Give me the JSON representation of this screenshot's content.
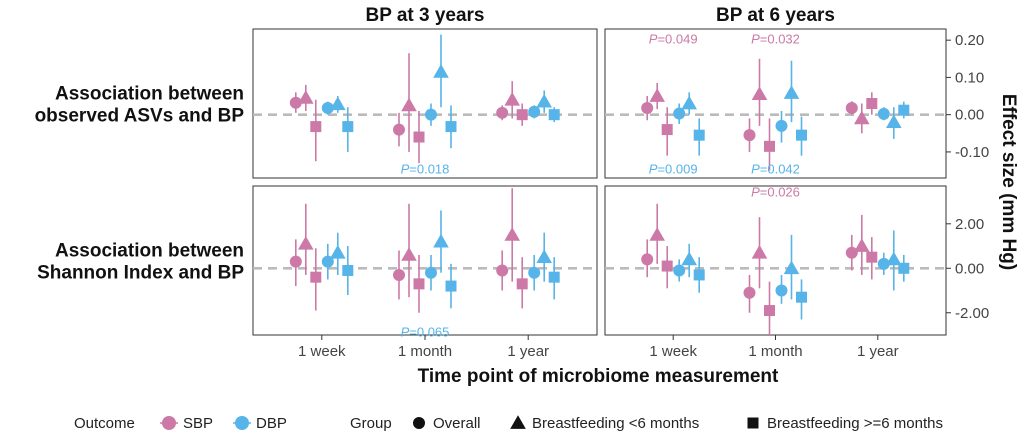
{
  "chart_data": {
    "type": "scatter",
    "subtype": "forest plot (point estimates with 95% CI error bars), faceted",
    "column_titles": [
      "BP at 3 years",
      "BP at 6 years"
    ],
    "row_labels": [
      [
        "Association between",
        "observed ASVs and BP"
      ],
      [
        "Association between",
        "Shannon Index and BP"
      ]
    ],
    "xlabel": "Time point of microbiome measurement",
    "ylabel": "Effect size (mm Hg)",
    "x_categories": [
      "1 week",
      "1 month",
      "1 year"
    ],
    "reference_line": 0,
    "grid": false,
    "legend_position": "bottom",
    "colors": {
      "SBP": "#CC79A7",
      "DBP": "#56B4E9",
      "reference": "#bbbbbb"
    },
    "legend": {
      "outcome_title": "Outcome",
      "outcomes": [
        "SBP",
        "DBP"
      ],
      "group_title": "Group",
      "groups": [
        {
          "name": "Overall",
          "shape": "circle"
        },
        {
          "name": "Breastfeeding <6 months",
          "shape": "triangle"
        },
        {
          "name": "Breastfeeding >=6 months",
          "shape": "square"
        }
      ]
    },
    "y_axes": [
      {
        "row": 0,
        "ylim": [
          -0.17,
          0.23
        ],
        "ticks": [
          0.2,
          0.1,
          0.0,
          -0.1
        ],
        "tick_labels": [
          "0.20",
          "0.10",
          "0.00",
          "-0.10"
        ]
      },
      {
        "row": 1,
        "ylim": [
          -3.0,
          3.7
        ],
        "ticks": [
          2,
          0,
          -2
        ],
        "tick_labels": [
          "2.00",
          "0.00",
          "-2.00"
        ]
      }
    ],
    "panels": [
      {
        "row": 0,
        "col": 0,
        "points": [
          {
            "x": "1 week",
            "outcome": "SBP",
            "group": "Overall",
            "est": 0.032,
            "lo": 0.005,
            "hi": 0.06
          },
          {
            "x": "1 week",
            "outcome": "SBP",
            "group": "Breastfeeding <6 months",
            "est": 0.045,
            "lo": 0.01,
            "hi": 0.08
          },
          {
            "x": "1 week",
            "outcome": "SBP",
            "group": "Breastfeeding >=6 months",
            "est": -0.032,
            "lo": -0.125,
            "hi": 0.04
          },
          {
            "x": "1 week",
            "outcome": "DBP",
            "group": "Overall",
            "est": 0.018,
            "lo": 0.0,
            "hi": 0.035
          },
          {
            "x": "1 week",
            "outcome": "DBP",
            "group": "Breastfeeding <6 months",
            "est": 0.028,
            "lo": 0.005,
            "hi": 0.05
          },
          {
            "x": "1 week",
            "outcome": "DBP",
            "group": "Breastfeeding >=6 months",
            "est": -0.032,
            "lo": -0.1,
            "hi": 0.02
          },
          {
            "x": "1 month",
            "outcome": "SBP",
            "group": "Overall",
            "est": -0.04,
            "lo": -0.085,
            "hi": 0.005
          },
          {
            "x": "1 month",
            "outcome": "SBP",
            "group": "Breastfeeding <6 months",
            "est": 0.025,
            "lo": -0.1,
            "hi": 0.165
          },
          {
            "x": "1 month",
            "outcome": "SBP",
            "group": "Breastfeeding >=6 months",
            "est": -0.06,
            "lo": -0.13,
            "hi": 0.01
          },
          {
            "x": "1 month",
            "outcome": "DBP",
            "group": "Overall",
            "est": 0.0,
            "lo": -0.03,
            "hi": 0.03
          },
          {
            "x": "1 month",
            "outcome": "DBP",
            "group": "Breastfeeding <6 months",
            "est": 0.115,
            "lo": 0.02,
            "hi": 0.215
          },
          {
            "x": "1 month",
            "outcome": "DBP",
            "group": "Breastfeeding >=6 months",
            "est": -0.032,
            "lo": -0.09,
            "hi": 0.025
          },
          {
            "x": "1 year",
            "outcome": "SBP",
            "group": "Overall",
            "est": 0.005,
            "lo": -0.015,
            "hi": 0.025
          },
          {
            "x": "1 year",
            "outcome": "SBP",
            "group": "Breastfeeding <6 months",
            "est": 0.04,
            "lo": -0.01,
            "hi": 0.09
          },
          {
            "x": "1 year",
            "outcome": "SBP",
            "group": "Breastfeeding >=6 months",
            "est": 0.0,
            "lo": -0.03,
            "hi": 0.03
          },
          {
            "x": "1 year",
            "outcome": "DBP",
            "group": "Overall",
            "est": 0.008,
            "lo": -0.01,
            "hi": 0.025
          },
          {
            "x": "1 year",
            "outcome": "DBP",
            "group": "Breastfeeding <6 months",
            "est": 0.035,
            "lo": 0.005,
            "hi": 0.065
          },
          {
            "x": "1 year",
            "outcome": "DBP",
            "group": "Breastfeeding >=6 months",
            "est": 0.0,
            "lo": -0.02,
            "hi": 0.02
          }
        ],
        "annotations": [
          {
            "text": "=0.018",
            "prefix": "P",
            "x": "1 month",
            "y": -0.145,
            "color": "#56B4E9"
          }
        ]
      },
      {
        "row": 0,
        "col": 1,
        "points": [
          {
            "x": "1 week",
            "outcome": "SBP",
            "group": "Overall",
            "est": 0.018,
            "lo": -0.015,
            "hi": 0.05
          },
          {
            "x": "1 week",
            "outcome": "SBP",
            "group": "Breastfeeding <6 months",
            "est": 0.05,
            "lo": 0.015,
            "hi": 0.085
          },
          {
            "x": "1 week",
            "outcome": "SBP",
            "group": "Breastfeeding >=6 months",
            "est": -0.04,
            "lo": -0.11,
            "hi": 0.02
          },
          {
            "x": "1 week",
            "outcome": "DBP",
            "group": "Overall",
            "est": 0.003,
            "lo": -0.025,
            "hi": 0.03
          },
          {
            "x": "1 week",
            "outcome": "DBP",
            "group": "Breastfeeding <6 months",
            "est": 0.03,
            "lo": 0.0,
            "hi": 0.06
          },
          {
            "x": "1 week",
            "outcome": "DBP",
            "group": "Breastfeeding >=6 months",
            "est": -0.055,
            "lo": -0.11,
            "hi": -0.01
          },
          {
            "x": "1 month",
            "outcome": "SBP",
            "group": "Overall",
            "est": -0.055,
            "lo": -0.1,
            "hi": -0.01
          },
          {
            "x": "1 month",
            "outcome": "SBP",
            "group": "Breastfeeding <6 months",
            "est": 0.055,
            "lo": -0.03,
            "hi": 0.15
          },
          {
            "x": "1 month",
            "outcome": "SBP",
            "group": "Breastfeeding >=6 months",
            "est": -0.085,
            "lo": -0.15,
            "hi": -0.01
          },
          {
            "x": "1 month",
            "outcome": "DBP",
            "group": "Overall",
            "est": -0.03,
            "lo": -0.075,
            "hi": 0.01
          },
          {
            "x": "1 month",
            "outcome": "DBP",
            "group": "Breastfeeding <6 months",
            "est": 0.058,
            "lo": -0.02,
            "hi": 0.145
          },
          {
            "x": "1 month",
            "outcome": "DBP",
            "group": "Breastfeeding >=6 months",
            "est": -0.055,
            "lo": -0.11,
            "hi": -0.005
          },
          {
            "x": "1 year",
            "outcome": "SBP",
            "group": "Overall",
            "est": 0.018,
            "lo": 0.0,
            "hi": 0.036
          },
          {
            "x": "1 year",
            "outcome": "SBP",
            "group": "Breastfeeding <6 months",
            "est": -0.01,
            "lo": -0.05,
            "hi": 0.03
          },
          {
            "x": "1 year",
            "outcome": "SBP",
            "group": "Breastfeeding >=6 months",
            "est": 0.03,
            "lo": 0.0,
            "hi": 0.06
          },
          {
            "x": "1 year",
            "outcome": "DBP",
            "group": "Overall",
            "est": 0.002,
            "lo": -0.015,
            "hi": 0.02
          },
          {
            "x": "1 year",
            "outcome": "DBP",
            "group": "Breastfeeding <6 months",
            "est": -0.02,
            "lo": -0.065,
            "hi": 0.02
          },
          {
            "x": "1 year",
            "outcome": "DBP",
            "group": "Breastfeeding >=6 months",
            "est": 0.012,
            "lo": -0.01,
            "hi": 0.035
          }
        ],
        "annotations": [
          {
            "text": "=0.049",
            "prefix": "P",
            "x": "1 week",
            "y": 0.205,
            "color": "#CC79A7"
          },
          {
            "text": "=0.032",
            "prefix": "P",
            "x": "1 month",
            "y": 0.205,
            "color": "#CC79A7"
          },
          {
            "text": "=0.009",
            "prefix": "P",
            "x": "1 week",
            "y": -0.145,
            "color": "#56B4E9"
          },
          {
            "text": "=0.042",
            "prefix": "P",
            "x": "1 month",
            "y": -0.145,
            "color": "#56B4E9"
          }
        ]
      },
      {
        "row": 1,
        "col": 0,
        "points": [
          {
            "x": "1 week",
            "outcome": "SBP",
            "group": "Overall",
            "est": 0.3,
            "lo": -0.8,
            "hi": 1.3
          },
          {
            "x": "1 week",
            "outcome": "SBP",
            "group": "Breastfeeding <6 months",
            "est": 1.1,
            "lo": -0.3,
            "hi": 2.9
          },
          {
            "x": "1 week",
            "outcome": "SBP",
            "group": "Breastfeeding >=6 months",
            "est": -0.4,
            "lo": -1.9,
            "hi": 0.9
          },
          {
            "x": "1 week",
            "outcome": "DBP",
            "group": "Overall",
            "est": 0.3,
            "lo": -0.5,
            "hi": 1.1
          },
          {
            "x": "1 week",
            "outcome": "DBP",
            "group": "Breastfeeding <6 months",
            "est": 0.7,
            "lo": -0.3,
            "hi": 1.6
          },
          {
            "x": "1 week",
            "outcome": "DBP",
            "group": "Breastfeeding >=6 months",
            "est": -0.1,
            "lo": -1.2,
            "hi": 1.0
          },
          {
            "x": "1 month",
            "outcome": "SBP",
            "group": "Overall",
            "est": -0.3,
            "lo": -1.4,
            "hi": 0.8
          },
          {
            "x": "1 month",
            "outcome": "SBP",
            "group": "Breastfeeding <6 months",
            "est": 0.6,
            "lo": -1.3,
            "hi": 2.9
          },
          {
            "x": "1 month",
            "outcome": "SBP",
            "group": "Breastfeeding >=6 months",
            "est": -0.7,
            "lo": -2.0,
            "hi": 0.6
          },
          {
            "x": "1 month",
            "outcome": "DBP",
            "group": "Overall",
            "est": -0.2,
            "lo": -1.0,
            "hi": 0.6
          },
          {
            "x": "1 month",
            "outcome": "DBP",
            "group": "Breastfeeding <6 months",
            "est": 1.2,
            "lo": -0.2,
            "hi": 2.6
          },
          {
            "x": "1 month",
            "outcome": "DBP",
            "group": "Breastfeeding >=6 months",
            "est": -0.8,
            "lo": -1.8,
            "hi": 0.2
          },
          {
            "x": "1 year",
            "outcome": "SBP",
            "group": "Overall",
            "est": -0.1,
            "lo": -1.0,
            "hi": 0.8
          },
          {
            "x": "1 year",
            "outcome": "SBP",
            "group": "Breastfeeding <6 months",
            "est": 1.5,
            "lo": -0.6,
            "hi": 3.6
          },
          {
            "x": "1 year",
            "outcome": "SBP",
            "group": "Breastfeeding >=6 months",
            "est": -0.7,
            "lo": -1.8,
            "hi": 0.5
          },
          {
            "x": "1 year",
            "outcome": "DBP",
            "group": "Overall",
            "est": -0.2,
            "lo": -1.0,
            "hi": 0.6
          },
          {
            "x": "1 year",
            "outcome": "DBP",
            "group": "Breastfeeding <6 months",
            "est": 0.5,
            "lo": -0.6,
            "hi": 1.6
          },
          {
            "x": "1 year",
            "outcome": "DBP",
            "group": "Breastfeeding >=6 months",
            "est": -0.4,
            "lo": -1.4,
            "hi": 0.5
          }
        ],
        "annotations": [
          {
            "text": "=0.065",
            "prefix": "P",
            "x": "1 month",
            "y": -2.85,
            "color": "#56B4E9"
          }
        ]
      },
      {
        "row": 1,
        "col": 1,
        "points": [
          {
            "x": "1 week",
            "outcome": "SBP",
            "group": "Overall",
            "est": 0.4,
            "lo": -0.4,
            "hi": 1.3
          },
          {
            "x": "1 week",
            "outcome": "SBP",
            "group": "Breastfeeding <6 months",
            "est": 1.5,
            "lo": 0.2,
            "hi": 2.9
          },
          {
            "x": "1 week",
            "outcome": "SBP",
            "group": "Breastfeeding >=6 months",
            "est": 0.1,
            "lo": -0.9,
            "hi": 1.0
          },
          {
            "x": "1 week",
            "outcome": "DBP",
            "group": "Overall",
            "est": -0.1,
            "lo": -0.6,
            "hi": 0.4
          },
          {
            "x": "1 week",
            "outcome": "DBP",
            "group": "Breastfeeding <6 months",
            "est": 0.4,
            "lo": -0.4,
            "hi": 1.1
          },
          {
            "x": "1 week",
            "outcome": "DBP",
            "group": "Breastfeeding >=6 months",
            "est": -0.3,
            "lo": -1.1,
            "hi": 0.5
          },
          {
            "x": "1 month",
            "outcome": "SBP",
            "group": "Overall",
            "est": -1.1,
            "lo": -2.0,
            "hi": -0.3
          },
          {
            "x": "1 month",
            "outcome": "SBP",
            "group": "Breastfeeding <6 months",
            "est": 0.7,
            "lo": -0.9,
            "hi": 2.3
          },
          {
            "x": "1 month",
            "outcome": "SBP",
            "group": "Breastfeeding >=6 months",
            "est": -1.9,
            "lo": -3.0,
            "hi": -0.6
          },
          {
            "x": "1 month",
            "outcome": "DBP",
            "group": "Overall",
            "est": -1.0,
            "lo": -1.6,
            "hi": -0.3
          },
          {
            "x": "1 month",
            "outcome": "DBP",
            "group": "Breastfeeding <6 months",
            "est": 0.0,
            "lo": -1.4,
            "hi": 1.5
          },
          {
            "x": "1 month",
            "outcome": "DBP",
            "group": "Breastfeeding >=6 months",
            "est": -1.3,
            "lo": -2.3,
            "hi": -0.5
          },
          {
            "x": "1 year",
            "outcome": "SBP",
            "group": "Overall",
            "est": 0.7,
            "lo": -0.1,
            "hi": 1.5
          },
          {
            "x": "1 year",
            "outcome": "SBP",
            "group": "Breastfeeding <6 months",
            "est": 1.0,
            "lo": -0.3,
            "hi": 2.4
          },
          {
            "x": "1 year",
            "outcome": "SBP",
            "group": "Breastfeeding >=6 months",
            "est": 0.5,
            "lo": -0.5,
            "hi": 1.4
          },
          {
            "x": "1 year",
            "outcome": "DBP",
            "group": "Overall",
            "est": 0.2,
            "lo": -0.3,
            "hi": 0.7
          },
          {
            "x": "1 year",
            "outcome": "DBP",
            "group": "Breastfeeding <6 months",
            "est": 0.4,
            "lo": -1.0,
            "hi": 1.7
          },
          {
            "x": "1 year",
            "outcome": "DBP",
            "group": "Breastfeeding >=6 months",
            "est": 0.0,
            "lo": -0.6,
            "hi": 0.6
          }
        ],
        "annotations": [
          {
            "text": "=0.026",
            "prefix": "P",
            "x": "1 month",
            "y": 3.45,
            "color": "#CC79A7"
          }
        ]
      }
    ]
  }
}
